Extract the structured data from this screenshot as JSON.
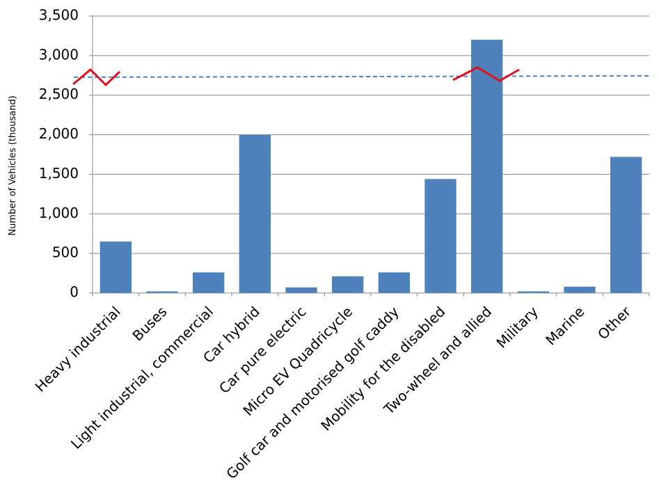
{
  "chart_data": {
    "type": "bar",
    "y_label": "Number of Vehicles (thousand)",
    "categories": [
      "Heavy industrial",
      "Buses",
      "Light industrial, commercial",
      "Car hybrid",
      "Car pure electric",
      "Micro EV Quadricycle",
      "Golf car and motorised golf caddy",
      "Mobility for the disabled",
      "Two-wheel and allied",
      "Military",
      "Marine",
      "Other"
    ],
    "values": [
      650,
      20,
      260,
      2000,
      70,
      210,
      260,
      1440,
      3200,
      20,
      80,
      1720
    ],
    "color": "#4f81bd",
    "ylim": [
      0,
      3500
    ],
    "yticks": [
      0,
      500,
      {
        "value": 1000,
        "label": "1,000"
      },
      {
        "value": 1500,
        "label": "1,500"
      },
      {
        "value": 2000,
        "label": "2,000"
      },
      {
        "value": 2500,
        "label": "2,500"
      },
      {
        "value": 3000,
        "label": "3,000"
      },
      {
        "value": 3500,
        "label": "3,500"
      }
    ],
    "grid": true
  }
}
